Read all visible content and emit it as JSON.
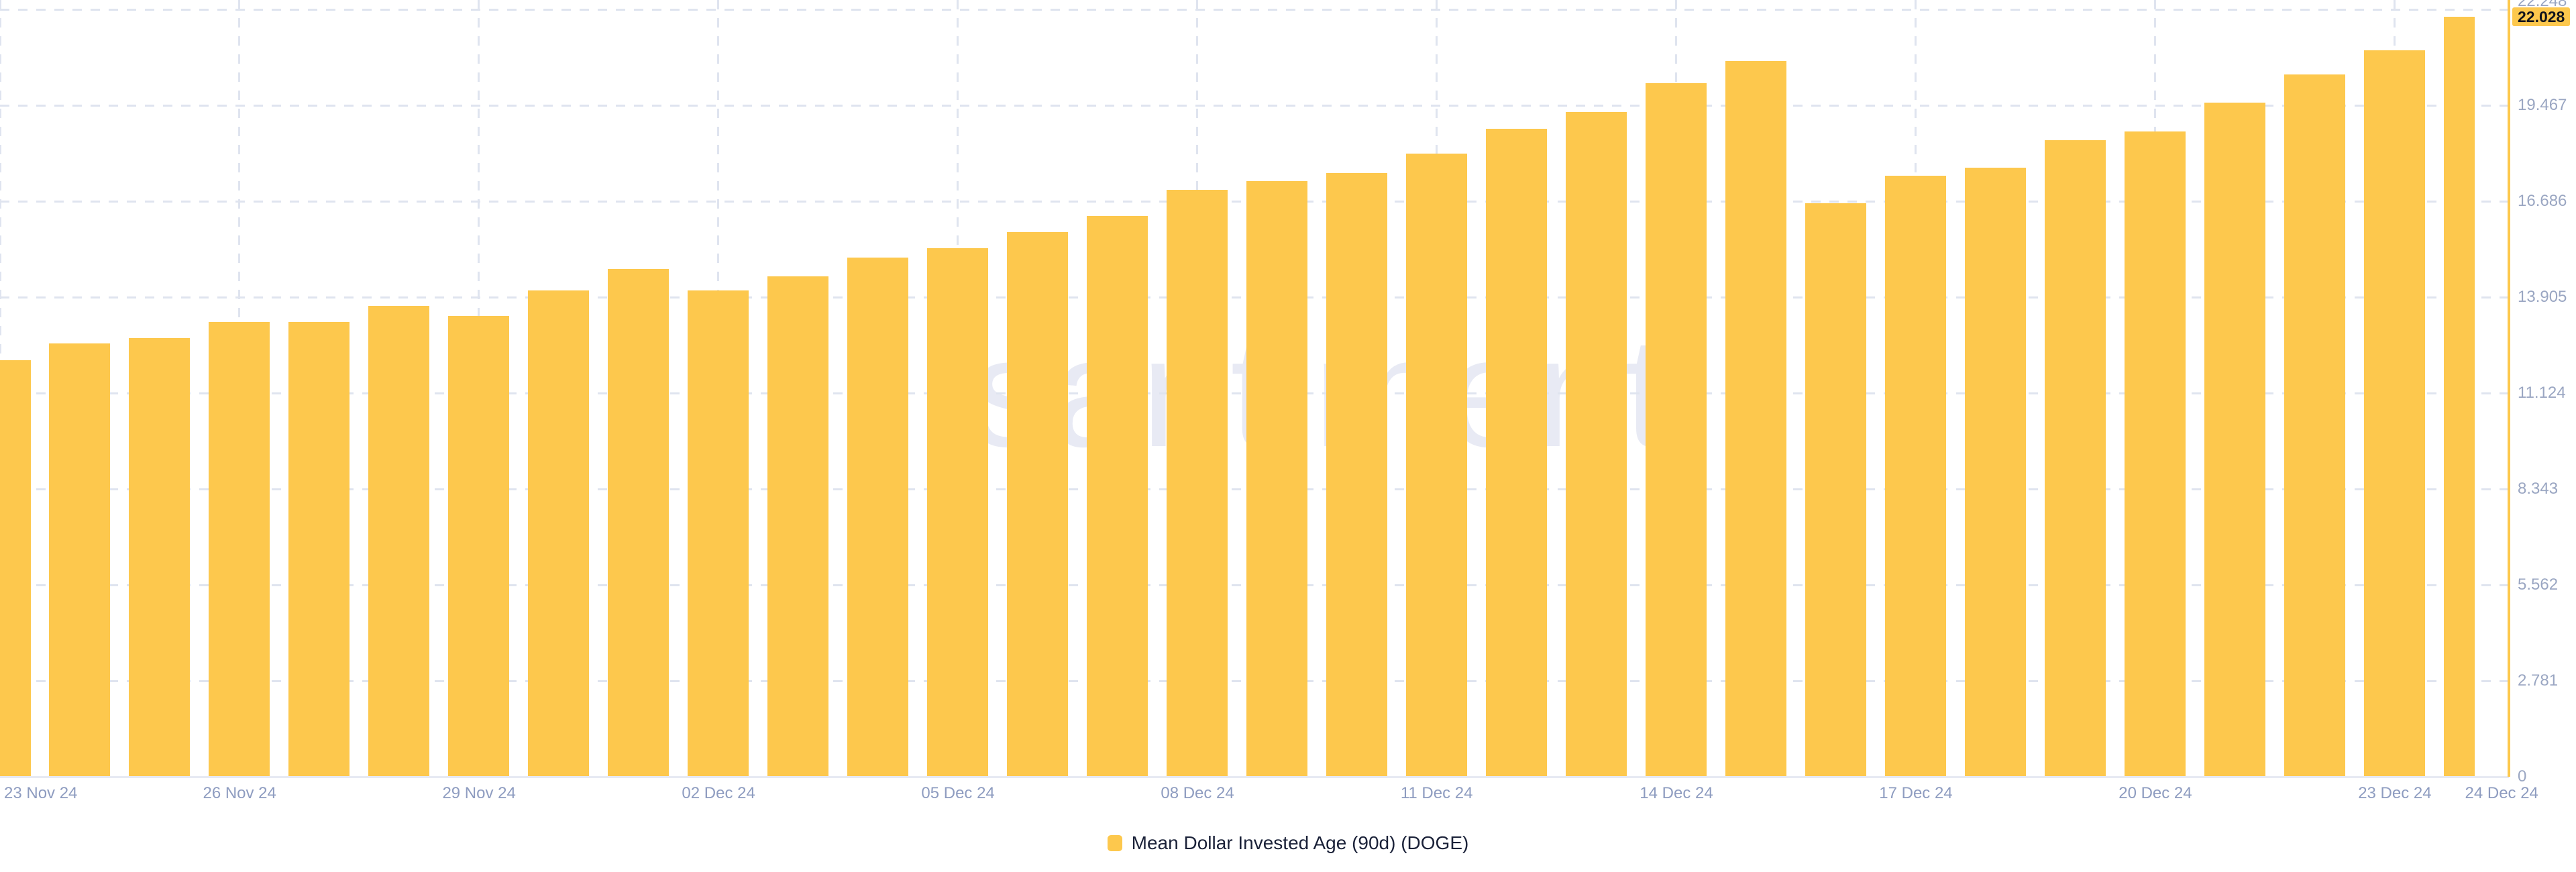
{
  "watermark": "santiment.",
  "colors": {
    "background": "#ffffff",
    "bar": "#fdc84d",
    "axis_line": "#fdc84d",
    "badge_bg": "#fdc84d",
    "badge_text": "#10131c",
    "grid": "#dfe4ef",
    "baseline": "#e7eaf3",
    "y_label": "#9aa6c2",
    "x_label": "#8e9cc0",
    "legend_text": "#1a2138",
    "watermark": "#e8eaf4"
  },
  "legend": {
    "label": "Mean Dollar Invested Age (90d) (DOGE)"
  },
  "badge": {
    "value": "22.028"
  },
  "y_axis": {
    "partial_top_tick": "22.248",
    "tick_labels": [
      "19.467",
      "16.686",
      "13.905",
      "11.124",
      "8.343",
      "5.562",
      "2.781",
      "0"
    ],
    "tick_values": [
      19.467,
      16.686,
      13.905,
      11.124,
      8.343,
      5.562,
      2.781,
      0
    ],
    "gridline_values": [
      22.248,
      19.467,
      16.686,
      13.905,
      11.124,
      8.343,
      5.562,
      2.781
    ],
    "max": 22.248
  },
  "x_axis": {
    "tick_indices": [
      0,
      3,
      6,
      9,
      12,
      15,
      18,
      21,
      24,
      27,
      30,
      31
    ],
    "tick_labels": [
      "23 Nov 24",
      "26 Nov 24",
      "29 Nov 24",
      "02 Dec 24",
      "05 Dec 24",
      "08 Dec 24",
      "11 Dec 24",
      "14 Dec 24",
      "17 Dec 24",
      "20 Dec 24",
      "23 Dec 24",
      "24 Dec 24"
    ]
  },
  "chart_data": {
    "type": "bar",
    "title": "Mean Dollar Invested Age (90d) (DOGE)",
    "xlabel": "",
    "ylabel": "",
    "ylim": [
      0,
      22.248
    ],
    "grid": "dashed",
    "legend_position": "bottom-center",
    "categories": [
      "23 Nov 24",
      "24 Nov 24",
      "25 Nov 24",
      "26 Nov 24",
      "27 Nov 24",
      "28 Nov 24",
      "29 Nov 24",
      "30 Nov 24",
      "01 Dec 24",
      "02 Dec 24",
      "03 Dec 24",
      "04 Dec 24",
      "05 Dec 24",
      "06 Dec 24",
      "07 Dec 24",
      "08 Dec 24",
      "09 Dec 24",
      "10 Dec 24",
      "11 Dec 24",
      "12 Dec 24",
      "13 Dec 24",
      "14 Dec 24",
      "15 Dec 24",
      "16 Dec 24",
      "17 Dec 24",
      "18 Dec 24",
      "19 Dec 24",
      "20 Dec 24",
      "21 Dec 24",
      "22 Dec 24",
      "23 Dec 24",
      "24 Dec 24"
    ],
    "values": [
      12.08,
      12.56,
      12.71,
      13.18,
      13.19,
      13.66,
      13.37,
      14.1,
      14.73,
      14.09,
      14.5,
      15.06,
      15.33,
      15.8,
      16.25,
      17.02,
      17.27,
      17.5,
      18.07,
      18.79,
      19.27,
      20.11,
      20.75,
      16.63,
      17.42,
      17.65,
      18.45,
      18.71,
      19.55,
      20.36,
      21.06,
      22.028
    ],
    "last_value_label": "22.028"
  }
}
